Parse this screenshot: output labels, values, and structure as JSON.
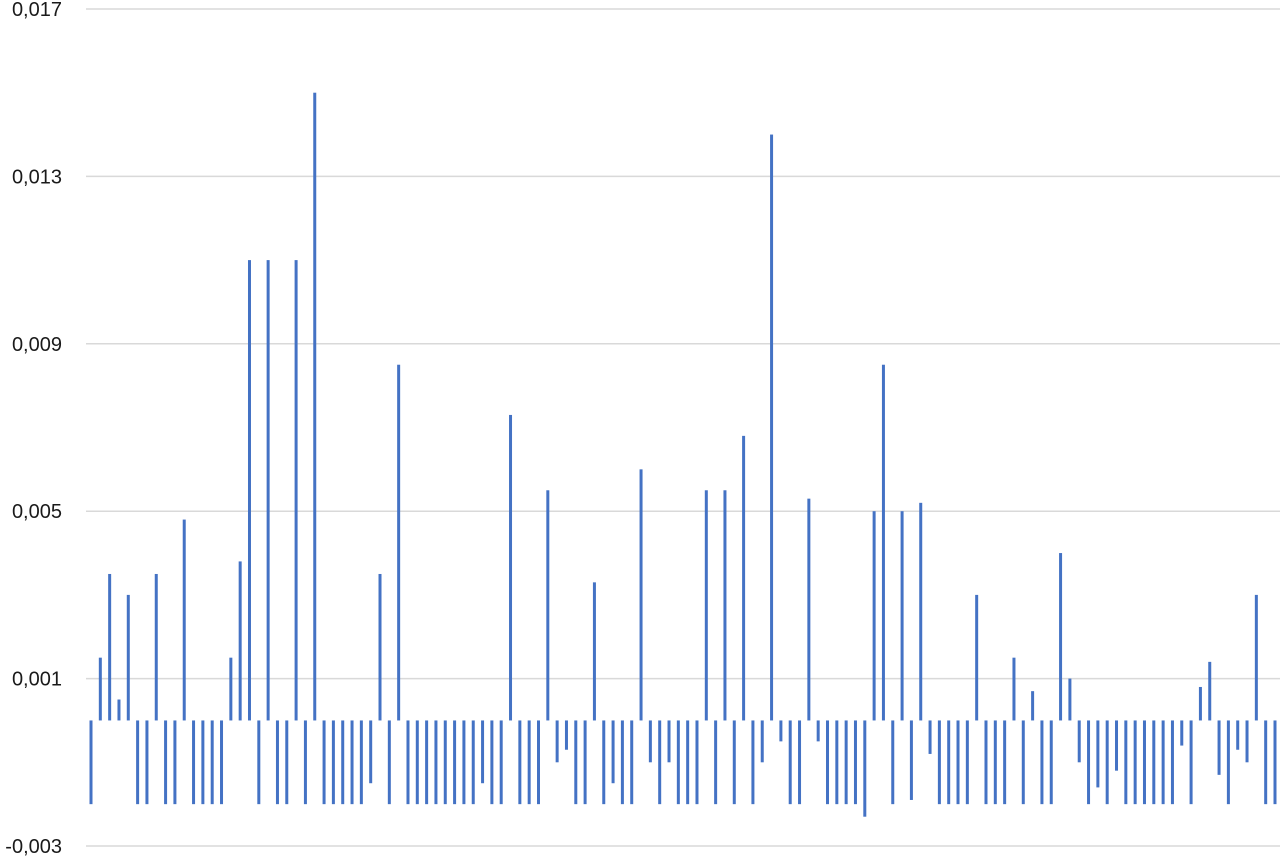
{
  "chart_data": {
    "type": "bar",
    "title": "",
    "xlabel": "",
    "ylabel": "",
    "ylim": [
      -0.003,
      0.017
    ],
    "yticks": [
      -0.003,
      0.001,
      0.005,
      0.009,
      0.013,
      0.017
    ],
    "ytick_labels": [
      "-0,003",
      "0,001",
      "0,005",
      "0,009",
      "0,013",
      "0,017"
    ],
    "grid": true,
    "legend": "none",
    "bar_color": "#4472c4",
    "grid_color": "#d9d9d9",
    "values": [
      -0.002,
      0.0015,
      0.0035,
      0.0005,
      0.003,
      -0.002,
      -0.002,
      0.0035,
      -0.002,
      -0.002,
      0.0048,
      -0.002,
      -0.002,
      -0.002,
      -0.002,
      0.0015,
      0.0038,
      0.011,
      -0.002,
      0.011,
      -0.002,
      -0.002,
      0.011,
      -0.002,
      0.015,
      -0.002,
      -0.002,
      -0.002,
      -0.002,
      -0.002,
      -0.0015,
      0.0035,
      -0.002,
      0.0085,
      -0.002,
      -0.002,
      -0.002,
      -0.002,
      -0.002,
      -0.002,
      -0.002,
      -0.002,
      -0.0015,
      -0.002,
      -0.002,
      0.0073,
      -0.002,
      -0.002,
      -0.002,
      0.0055,
      -0.001,
      -0.0007,
      -0.002,
      -0.002,
      0.0033,
      -0.002,
      -0.0015,
      -0.002,
      -0.002,
      0.006,
      -0.001,
      -0.002,
      -0.001,
      -0.002,
      -0.002,
      -0.002,
      0.0055,
      -0.002,
      0.0055,
      -0.002,
      0.0068,
      -0.002,
      -0.001,
      0.014,
      -0.0005,
      -0.002,
      -0.002,
      0.0053,
      -0.0005,
      -0.002,
      -0.002,
      -0.002,
      -0.002,
      -0.0023,
      0.005,
      0.0085,
      -0.002,
      0.005,
      -0.0019,
      0.0052,
      -0.0008,
      -0.002,
      -0.002,
      -0.002,
      -0.002,
      0.003,
      -0.002,
      -0.002,
      -0.002,
      0.0015,
      -0.002,
      0.0007,
      -0.002,
      -0.002,
      0.004,
      0.001,
      -0.001,
      -0.002,
      -0.0016,
      -0.002,
      -0.0012,
      -0.002,
      -0.002,
      -0.002,
      -0.002,
      -0.002,
      -0.002,
      -0.0006,
      -0.002,
      0.0008,
      0.0014,
      -0.0013,
      -0.002,
      -0.0007,
      -0.001,
      0.003,
      -0.002,
      -0.002
    ]
  }
}
